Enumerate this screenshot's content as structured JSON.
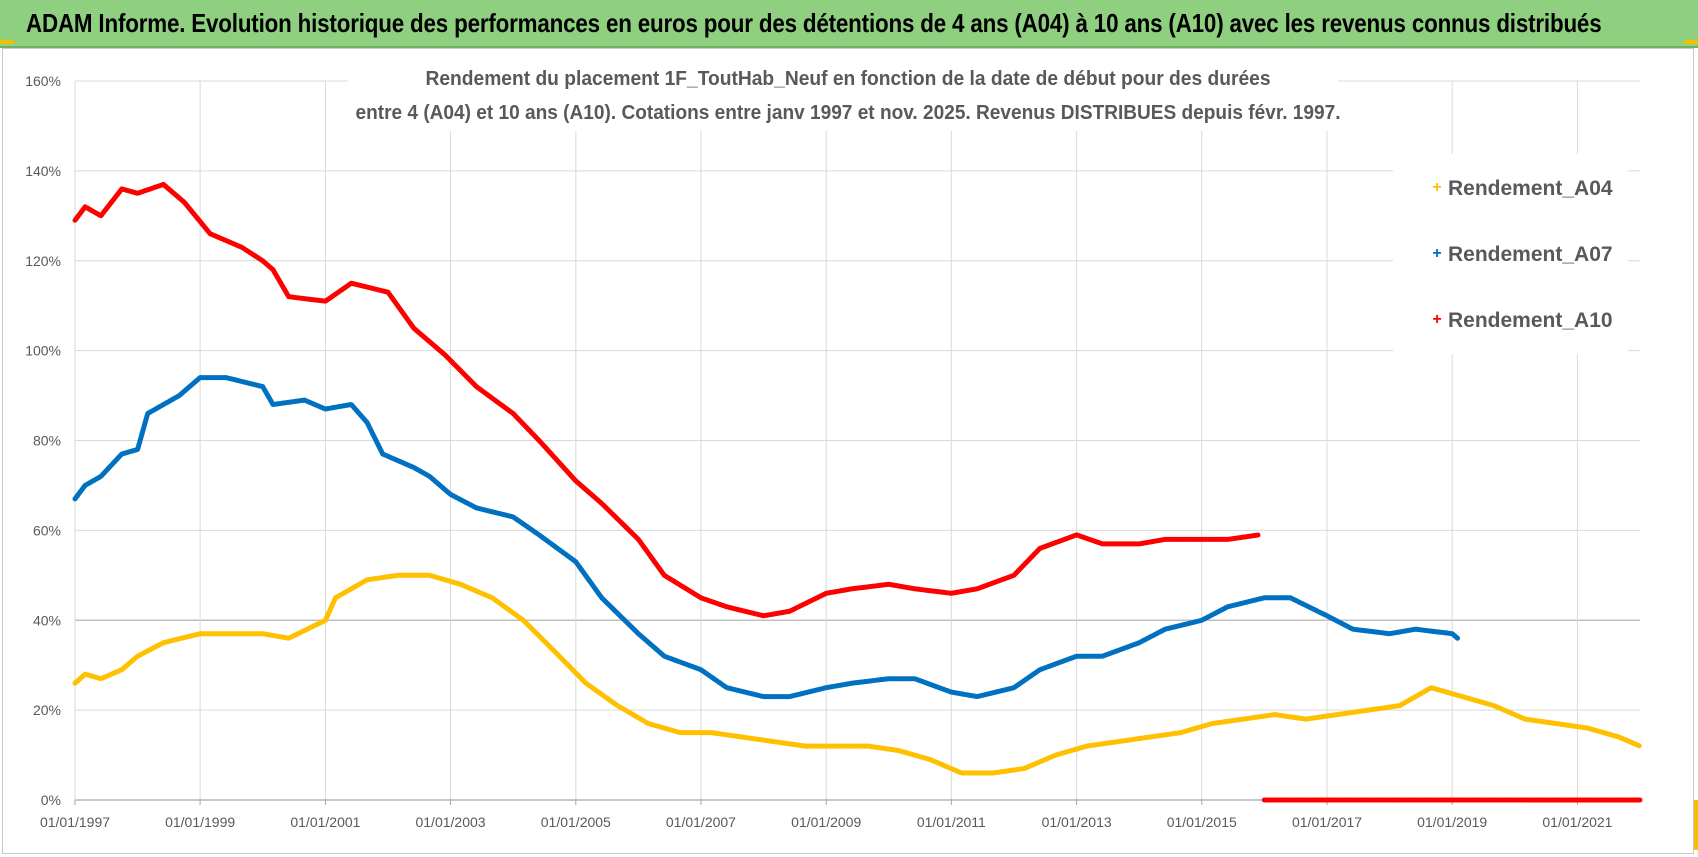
{
  "banner": {
    "title": "ADAM Informe. Evolution historique des performances en euros pour des détentions de 4 ans (A04) à 10 ans (A10) avec les revenus connus distribués"
  },
  "colors": {
    "banner_bg": "#8fcf80",
    "A04": "#ffc000",
    "A07": "#0070c0",
    "A10": "#ff0000",
    "grid": "#d9d9d9",
    "axis_text": "#595959",
    "corner_accent": "#f2c000"
  },
  "chart_data": {
    "type": "line",
    "title_lines": [
      "Rendement du placement 1F_ToutHab_Neuf en fonction de la date de début pour des durées",
      "entre 4 (A04) et 10 ans (A10).  Cotations entre janv 1997 et  nov. 2025. Revenus DISTRIBUES depuis févr. 1997."
    ],
    "xlabel": "",
    "ylabel": "",
    "x_range": [
      "1997-01-01",
      "2022-01-01"
    ],
    "ylim": [
      0,
      160
    ],
    "y_ticks": [
      0,
      20,
      40,
      60,
      80,
      100,
      120,
      140,
      160
    ],
    "y_tick_labels": [
      "0%",
      "20%",
      "40%",
      "60%",
      "80%",
      "100%",
      "120%",
      "140%",
      "160%"
    ],
    "x_ticks": [
      "1997-01-01",
      "1999-01-01",
      "2001-01-01",
      "2003-01-01",
      "2005-01-01",
      "2007-01-01",
      "2009-01-01",
      "2011-01-01",
      "2013-01-01",
      "2015-01-01",
      "2017-01-01",
      "2019-01-01",
      "2021-01-01"
    ],
    "x_tick_labels": [
      "01/01/1997",
      "01/01/1999",
      "01/01/2001",
      "01/01/2003",
      "01/01/2005",
      "01/01/2007",
      "01/01/2009",
      "01/01/2011",
      "01/01/2013",
      "01/01/2015",
      "01/01/2017",
      "01/01/2019",
      "01/01/2021"
    ],
    "grid": true,
    "legend_position": "top-right",
    "marker": "+",
    "series": [
      {
        "name": "Rendement_A04",
        "color": "#ffc000",
        "points": [
          [
            "1997-01-01",
            26
          ],
          [
            "1997-03-01",
            28
          ],
          [
            "1997-06-01",
            27
          ],
          [
            "1997-10-01",
            29
          ],
          [
            "1998-01-01",
            32
          ],
          [
            "1998-06-01",
            35
          ],
          [
            "1999-01-01",
            37
          ],
          [
            "1999-06-01",
            37
          ],
          [
            "2000-01-01",
            37
          ],
          [
            "2000-06-01",
            36
          ],
          [
            "2001-01-01",
            40
          ],
          [
            "2001-03-01",
            45
          ],
          [
            "2001-09-01",
            49
          ],
          [
            "2002-03-01",
            50
          ],
          [
            "2002-09-01",
            50
          ],
          [
            "2003-03-01",
            48
          ],
          [
            "2003-09-01",
            45
          ],
          [
            "2004-03-01",
            40
          ],
          [
            "2004-09-01",
            33
          ],
          [
            "2005-03-01",
            26
          ],
          [
            "2005-09-01",
            21
          ],
          [
            "2006-03-01",
            17
          ],
          [
            "2006-09-01",
            15
          ],
          [
            "2007-03-01",
            15
          ],
          [
            "2007-09-01",
            14
          ],
          [
            "2008-03-01",
            13
          ],
          [
            "2008-09-01",
            12
          ],
          [
            "2009-03-01",
            12
          ],
          [
            "2009-09-01",
            12
          ],
          [
            "2010-03-01",
            11
          ],
          [
            "2010-09-01",
            9
          ],
          [
            "2011-03-01",
            6
          ],
          [
            "2011-09-01",
            6
          ],
          [
            "2012-03-01",
            7
          ],
          [
            "2012-09-01",
            10
          ],
          [
            "2013-03-01",
            12
          ],
          [
            "2013-09-01",
            13
          ],
          [
            "2014-03-01",
            14
          ],
          [
            "2014-09-01",
            15
          ],
          [
            "2015-03-01",
            17
          ],
          [
            "2015-09-01",
            18
          ],
          [
            "2016-03-01",
            19
          ],
          [
            "2016-09-01",
            18
          ],
          [
            "2017-03-01",
            19
          ],
          [
            "2017-09-01",
            20
          ],
          [
            "2018-03-01",
            21
          ],
          [
            "2018-09-01",
            25
          ],
          [
            "2019-03-01",
            23
          ],
          [
            "2019-09-01",
            21
          ],
          [
            "2020-03-01",
            18
          ],
          [
            "2020-09-01",
            17
          ],
          [
            "2021-03-01",
            16
          ],
          [
            "2021-09-01",
            14
          ],
          [
            "2022-01-01",
            12
          ]
        ]
      },
      {
        "name": "Rendement_A07",
        "color": "#0070c0",
        "points": [
          [
            "1997-01-01",
            67
          ],
          [
            "1997-03-01",
            70
          ],
          [
            "1997-06-01",
            72
          ],
          [
            "1997-10-01",
            77
          ],
          [
            "1998-01-01",
            78
          ],
          [
            "1998-03-01",
            86
          ],
          [
            "1998-09-01",
            90
          ],
          [
            "1999-01-01",
            94
          ],
          [
            "1999-06-01",
            94
          ],
          [
            "2000-01-01",
            92
          ],
          [
            "2000-03-01",
            88
          ],
          [
            "2000-09-01",
            89
          ],
          [
            "2001-01-01",
            87
          ],
          [
            "2001-06-01",
            88
          ],
          [
            "2001-09-01",
            84
          ],
          [
            "2001-12-01",
            77
          ],
          [
            "2002-06-01",
            74
          ],
          [
            "2002-09-01",
            72
          ],
          [
            "2003-01-01",
            68
          ],
          [
            "2003-06-01",
            65
          ],
          [
            "2004-01-01",
            63
          ],
          [
            "2004-06-01",
            59
          ],
          [
            "2005-01-01",
            53
          ],
          [
            "2005-06-01",
            45
          ],
          [
            "2006-01-01",
            37
          ],
          [
            "2006-06-01",
            32
          ],
          [
            "2007-01-01",
            29
          ],
          [
            "2007-06-01",
            25
          ],
          [
            "2008-01-01",
            23
          ],
          [
            "2008-06-01",
            23
          ],
          [
            "2009-01-01",
            25
          ],
          [
            "2009-06-01",
            26
          ],
          [
            "2010-01-01",
            27
          ],
          [
            "2010-06-01",
            27
          ],
          [
            "2011-01-01",
            24
          ],
          [
            "2011-06-01",
            23
          ],
          [
            "2012-01-01",
            25
          ],
          [
            "2012-06-01",
            29
          ],
          [
            "2013-01-01",
            32
          ],
          [
            "2013-06-01",
            32
          ],
          [
            "2014-01-01",
            35
          ],
          [
            "2014-06-01",
            38
          ],
          [
            "2015-01-01",
            40
          ],
          [
            "2015-06-01",
            43
          ],
          [
            "2016-01-01",
            45
          ],
          [
            "2016-06-01",
            45
          ],
          [
            "2017-01-01",
            41
          ],
          [
            "2017-06-01",
            38
          ],
          [
            "2018-01-01",
            37
          ],
          [
            "2018-06-01",
            38
          ],
          [
            "2019-01-01",
            37
          ],
          [
            "2019-02-01",
            36
          ]
        ]
      },
      {
        "name": "Rendement_A10",
        "color": "#ff0000",
        "points": [
          [
            "1997-01-01",
            129
          ],
          [
            "1997-03-01",
            132
          ],
          [
            "1997-06-01",
            130
          ],
          [
            "1997-10-01",
            136
          ],
          [
            "1998-01-01",
            135
          ],
          [
            "1998-06-01",
            137
          ],
          [
            "1998-10-01",
            133
          ],
          [
            "1999-03-01",
            126
          ],
          [
            "1999-09-01",
            123
          ],
          [
            "2000-01-01",
            120
          ],
          [
            "2000-03-01",
            118
          ],
          [
            "2000-06-01",
            112
          ],
          [
            "2001-01-01",
            111
          ],
          [
            "2001-06-01",
            115
          ],
          [
            "2002-01-01",
            113
          ],
          [
            "2002-06-01",
            105
          ],
          [
            "2002-12-01",
            99
          ],
          [
            "2003-06-01",
            92
          ],
          [
            "2004-01-01",
            86
          ],
          [
            "2004-06-01",
            80
          ],
          [
            "2005-01-01",
            71
          ],
          [
            "2005-06-01",
            66
          ],
          [
            "2006-01-01",
            58
          ],
          [
            "2006-06-01",
            50
          ],
          [
            "2007-01-01",
            45
          ],
          [
            "2007-06-01",
            43
          ],
          [
            "2008-01-01",
            41
          ],
          [
            "2008-06-01",
            42
          ],
          [
            "2009-01-01",
            46
          ],
          [
            "2009-06-01",
            47
          ],
          [
            "2010-01-01",
            48
          ],
          [
            "2010-06-01",
            47
          ],
          [
            "2011-01-01",
            46
          ],
          [
            "2011-06-01",
            47
          ],
          [
            "2012-01-01",
            50
          ],
          [
            "2012-06-01",
            56
          ],
          [
            "2013-01-01",
            59
          ],
          [
            "2013-06-01",
            57
          ],
          [
            "2014-01-01",
            57
          ],
          [
            "2014-06-01",
            58
          ],
          [
            "2015-01-01",
            58
          ],
          [
            "2015-06-01",
            58
          ],
          [
            "2015-12-01",
            59
          ]
        ]
      },
      {
        "name": "Rendement_A10",
        "color": "#ff0000",
        "legend": false,
        "points": [
          [
            "2016-01-01",
            0
          ],
          [
            "2022-01-01",
            0
          ]
        ]
      }
    ]
  }
}
